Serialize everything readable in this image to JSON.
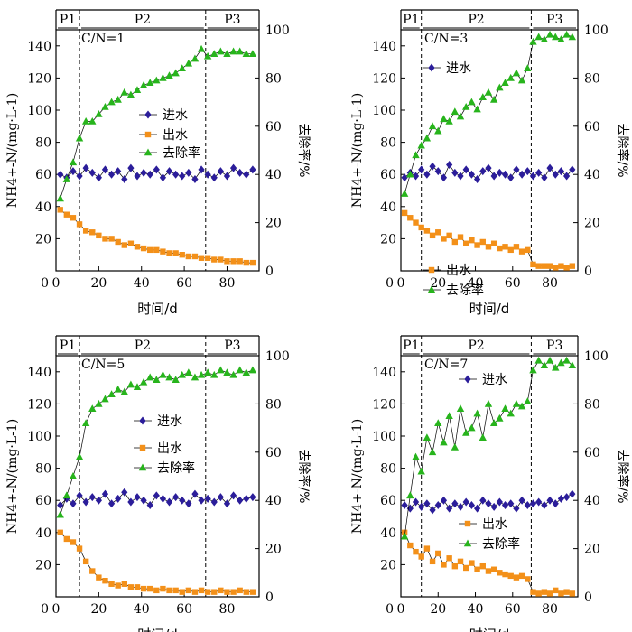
{
  "chart_data": [
    {
      "type": "scatter",
      "title": "C/N=1",
      "xlabel": "时间/d",
      "ylabel_left": "NH4+-N/(mg·L-1)",
      "ylabel_right": "去除率/%",
      "xlim": [
        0,
        95
      ],
      "ylim_left": [
        0,
        150
      ],
      "ylim_right": [
        0,
        100
      ],
      "xticks": [
        0,
        20,
        40,
        60,
        80
      ],
      "yticks_left": [
        20,
        40,
        60,
        80,
        100,
        120,
        140
      ],
      "yticks_right": [
        0,
        20,
        40,
        60,
        80,
        100
      ],
      "phases": [
        {
          "label": "P1",
          "start": 0,
          "end": 11
        },
        {
          "label": "P2",
          "start": 11,
          "end": 70
        },
        {
          "label": "P3",
          "start": 70,
          "end": 95
        }
      ],
      "legend": {
        "entries": [
          "进水",
          "出水",
          "去除率"
        ]
      },
      "series": [
        {
          "name": "进水",
          "axis": "left",
          "color": "#2b1d9a",
          "marker": "diamond",
          "x": [
            2,
            5,
            8,
            11,
            14,
            17,
            20,
            23,
            26,
            29,
            32,
            35,
            38,
            41,
            44,
            47,
            50,
            53,
            56,
            59,
            62,
            65,
            68,
            71,
            74,
            77,
            80,
            83,
            86,
            89,
            92
          ],
          "y": [
            60,
            58,
            62,
            59,
            64,
            61,
            58,
            63,
            60,
            62,
            57,
            64,
            59,
            61,
            60,
            63,
            58,
            62,
            60,
            59,
            61,
            57,
            63,
            60,
            58,
            62,
            59,
            64,
            61,
            60,
            63
          ]
        },
        {
          "name": "出水",
          "axis": "left",
          "color": "#f39019",
          "marker": "square",
          "x": [
            2,
            5,
            8,
            11,
            14,
            17,
            20,
            23,
            26,
            29,
            32,
            35,
            38,
            41,
            44,
            47,
            50,
            53,
            56,
            59,
            62,
            65,
            68,
            71,
            74,
            77,
            80,
            83,
            86,
            89,
            92
          ],
          "y": [
            38,
            35,
            33,
            29,
            25,
            24,
            22,
            20,
            20,
            18,
            16,
            17,
            15,
            14,
            13,
            13,
            12,
            11,
            11,
            10,
            9,
            9,
            8,
            8,
            7,
            7,
            6,
            6,
            6,
            5,
            5
          ]
        },
        {
          "name": "去除率",
          "axis": "right",
          "color": "#27b41c",
          "marker": "triangle",
          "x": [
            2,
            5,
            8,
            11,
            14,
            17,
            20,
            23,
            26,
            29,
            32,
            35,
            38,
            41,
            44,
            47,
            50,
            53,
            56,
            59,
            62,
            65,
            68,
            71,
            74,
            77,
            80,
            83,
            86,
            89,
            92
          ],
          "y": [
            30,
            38,
            45,
            55,
            62,
            62,
            65,
            68,
            70,
            71,
            74,
            73,
            75,
            77,
            78,
            79,
            80,
            81,
            82,
            84,
            86,
            88,
            92,
            89,
            90,
            91,
            90,
            91,
            91,
            90,
            90
          ]
        }
      ]
    },
    {
      "type": "scatter",
      "title": "C/N=3",
      "xlabel": "时间/d",
      "ylabel_left": "NH4+-N/(mg·L-1)",
      "ylabel_right": "去除率/%",
      "xlim": [
        0,
        95
      ],
      "ylim_left": [
        0,
        150
      ],
      "ylim_right": [
        0,
        100
      ],
      "xticks": [
        0,
        20,
        40,
        60,
        80
      ],
      "yticks_left": [
        20,
        40,
        60,
        80,
        100,
        120,
        140
      ],
      "yticks_right": [
        0,
        20,
        40,
        60,
        80,
        100
      ],
      "phases": [
        {
          "label": "P1",
          "start": 0,
          "end": 11
        },
        {
          "label": "P2",
          "start": 11,
          "end": 70
        },
        {
          "label": "P3",
          "start": 70,
          "end": 95
        }
      ],
      "legend": {
        "entries": [
          "进水",
          "出水",
          "去除率"
        ]
      },
      "series": [
        {
          "name": "进水",
          "axis": "left",
          "color": "#2b1d9a",
          "marker": "diamond",
          "x": [
            2,
            5,
            8,
            11,
            14,
            17,
            20,
            23,
            26,
            29,
            32,
            35,
            38,
            41,
            44,
            47,
            50,
            53,
            56,
            59,
            62,
            65,
            68,
            71,
            74,
            77,
            80,
            83,
            86,
            89,
            92
          ],
          "y": [
            58,
            61,
            59,
            63,
            60,
            65,
            62,
            58,
            66,
            61,
            59,
            63,
            60,
            57,
            62,
            64,
            59,
            61,
            60,
            58,
            63,
            60,
            62,
            59,
            61,
            58,
            64,
            60,
            62,
            59,
            63
          ]
        },
        {
          "name": "出水",
          "axis": "left",
          "color": "#f39019",
          "marker": "square",
          "x": [
            2,
            5,
            8,
            11,
            14,
            17,
            20,
            23,
            26,
            29,
            32,
            35,
            38,
            41,
            44,
            47,
            50,
            53,
            56,
            59,
            62,
            65,
            68,
            71,
            74,
            77,
            80,
            83,
            86,
            89,
            92
          ],
          "y": [
            36,
            33,
            30,
            27,
            25,
            22,
            24,
            20,
            22,
            18,
            21,
            17,
            19,
            16,
            18,
            15,
            17,
            14,
            15,
            13,
            15,
            12,
            13,
            4,
            3,
            3,
            3,
            2,
            3,
            2,
            3
          ]
        },
        {
          "name": "去除率",
          "axis": "right",
          "color": "#27b41c",
          "marker": "triangle",
          "x": [
            2,
            5,
            8,
            11,
            14,
            17,
            20,
            23,
            26,
            29,
            32,
            35,
            38,
            41,
            44,
            47,
            50,
            53,
            56,
            59,
            62,
            65,
            68,
            71,
            74,
            77,
            80,
            83,
            86,
            89,
            92
          ],
          "y": [
            32,
            40,
            48,
            52,
            55,
            60,
            58,
            63,
            62,
            66,
            64,
            68,
            70,
            67,
            72,
            74,
            71,
            76,
            78,
            80,
            82,
            79,
            84,
            95,
            97,
            96,
            98,
            97,
            96,
            98,
            97
          ]
        }
      ]
    },
    {
      "type": "scatter",
      "title": "C/N=5",
      "xlabel": "时间/d",
      "ylabel_left": "NH4+-N/(mg·L-1)",
      "ylabel_right": "去除率/%",
      "xlim": [
        0,
        95
      ],
      "ylim_left": [
        0,
        150
      ],
      "ylim_right": [
        0,
        100
      ],
      "xticks": [
        0,
        20,
        40,
        60,
        80
      ],
      "yticks_left": [
        20,
        40,
        60,
        80,
        100,
        120,
        140
      ],
      "yticks_right": [
        0,
        20,
        40,
        60,
        80,
        100
      ],
      "phases": [
        {
          "label": "P1",
          "start": 0,
          "end": 11
        },
        {
          "label": "P2",
          "start": 11,
          "end": 70
        },
        {
          "label": "P3",
          "start": 70,
          "end": 95
        }
      ],
      "legend": {
        "entries": [
          "进水",
          "出水",
          "去除率"
        ]
      },
      "series": [
        {
          "name": "进水",
          "axis": "left",
          "color": "#2b1d9a",
          "marker": "diamond",
          "x": [
            2,
            5,
            8,
            11,
            14,
            17,
            20,
            23,
            26,
            29,
            32,
            35,
            38,
            41,
            44,
            47,
            50,
            53,
            56,
            59,
            62,
            65,
            68,
            71,
            74,
            77,
            80,
            83,
            86,
            89,
            92
          ],
          "y": [
            57,
            61,
            58,
            63,
            59,
            62,
            60,
            64,
            58,
            61,
            65,
            59,
            62,
            60,
            57,
            63,
            61,
            59,
            62,
            60,
            58,
            64,
            60,
            61,
            59,
            62,
            58,
            63,
            60,
            61,
            62
          ]
        },
        {
          "name": "出水",
          "axis": "left",
          "color": "#f39019",
          "marker": "square",
          "x": [
            2,
            5,
            8,
            11,
            14,
            17,
            20,
            23,
            26,
            29,
            32,
            35,
            38,
            41,
            44,
            47,
            50,
            53,
            56,
            59,
            62,
            65,
            68,
            71,
            74,
            77,
            80,
            83,
            86,
            89,
            92
          ],
          "y": [
            40,
            36,
            34,
            30,
            22,
            16,
            12,
            10,
            8,
            7,
            8,
            6,
            6,
            5,
            5,
            4,
            5,
            4,
            4,
            3,
            4,
            3,
            4,
            3,
            3,
            4,
            3,
            3,
            4,
            3,
            3
          ]
        },
        {
          "name": "去除率",
          "axis": "right",
          "color": "#27b41c",
          "marker": "triangle",
          "x": [
            2,
            5,
            8,
            11,
            14,
            17,
            20,
            23,
            26,
            29,
            32,
            35,
            38,
            41,
            44,
            47,
            50,
            53,
            56,
            59,
            62,
            65,
            68,
            71,
            74,
            77,
            80,
            83,
            86,
            89,
            92
          ],
          "y": [
            34,
            42,
            50,
            58,
            72,
            78,
            80,
            82,
            84,
            86,
            85,
            88,
            87,
            89,
            91,
            90,
            92,
            91,
            90,
            92,
            93,
            91,
            92,
            93,
            92,
            94,
            93,
            92,
            94,
            93,
            94
          ]
        }
      ]
    },
    {
      "type": "scatter",
      "title": "C/N=7",
      "xlabel": "时间/d",
      "ylabel_left": "NH4+-N/(mg·L-1)",
      "ylabel_right": "去除率/%",
      "xlim": [
        0,
        95
      ],
      "ylim_left": [
        0,
        150
      ],
      "ylim_right": [
        0,
        100
      ],
      "xticks": [
        0,
        20,
        40,
        60,
        80
      ],
      "yticks_left": [
        20,
        40,
        60,
        80,
        100,
        120,
        140
      ],
      "yticks_right": [
        0,
        20,
        40,
        60,
        80,
        100
      ],
      "phases": [
        {
          "label": "P1",
          "start": 0,
          "end": 11
        },
        {
          "label": "P2",
          "start": 11,
          "end": 70
        },
        {
          "label": "P3",
          "start": 70,
          "end": 95
        }
      ],
      "legend": {
        "entries": [
          "进水",
          "出水",
          "去除率"
        ]
      },
      "series": [
        {
          "name": "进水",
          "axis": "left",
          "color": "#2b1d9a",
          "marker": "diamond",
          "x": [
            2,
            5,
            8,
            11,
            14,
            17,
            20,
            23,
            26,
            29,
            32,
            35,
            38,
            41,
            44,
            47,
            50,
            53,
            56,
            59,
            62,
            65,
            68,
            71,
            74,
            77,
            80,
            83,
            86,
            89,
            92
          ],
          "y": [
            57,
            55,
            59,
            56,
            58,
            54,
            57,
            60,
            55,
            58,
            56,
            59,
            57,
            55,
            60,
            58,
            56,
            59,
            57,
            58,
            55,
            60,
            57,
            58,
            59,
            57,
            60,
            58,
            61,
            62,
            64
          ]
        },
        {
          "name": "出水",
          "axis": "left",
          "color": "#f39019",
          "marker": "square",
          "x": [
            2,
            5,
            8,
            11,
            14,
            17,
            20,
            23,
            26,
            29,
            32,
            35,
            38,
            41,
            44,
            47,
            50,
            53,
            56,
            59,
            62,
            65,
            68,
            71,
            74,
            77,
            80,
            83,
            86,
            89,
            92
          ],
          "y": [
            40,
            32,
            28,
            25,
            30,
            22,
            27,
            20,
            24,
            19,
            22,
            18,
            21,
            17,
            19,
            16,
            17,
            15,
            14,
            13,
            12,
            13,
            11,
            3,
            2,
            3,
            2,
            4,
            2,
            3,
            2
          ]
        },
        {
          "name": "去除率",
          "axis": "right",
          "color": "#27b41c",
          "marker": "triangle",
          "x": [
            2,
            5,
            8,
            11,
            14,
            17,
            20,
            23,
            26,
            29,
            32,
            35,
            38,
            41,
            44,
            47,
            50,
            53,
            56,
            59,
            62,
            65,
            68,
            71,
            74,
            77,
            80,
            83,
            86,
            89,
            92
          ],
          "y": [
            25,
            42,
            58,
            52,
            66,
            60,
            72,
            64,
            75,
            62,
            78,
            68,
            70,
            76,
            66,
            80,
            72,
            74,
            78,
            76,
            80,
            79,
            81,
            94,
            98,
            96,
            98,
            95,
            97,
            98,
            96
          ]
        }
      ]
    }
  ]
}
